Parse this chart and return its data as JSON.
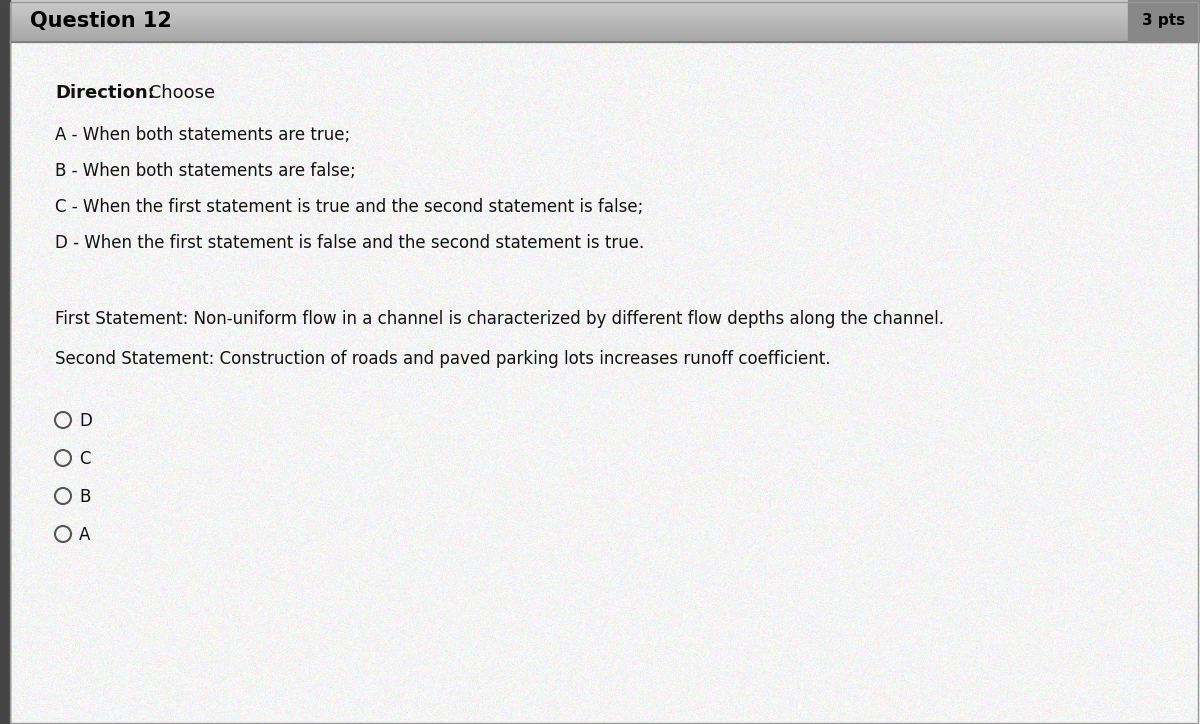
{
  "title": "Question 12",
  "pts": "3 pts",
  "direction_label": "Direction:",
  "direction_text": " Choose",
  "options": [
    "A - When both statements are true;",
    "B - When both statements are false;",
    "C - When the first statement is true and the second statement is false;",
    "D - When the first statement is false and the second statement is true."
  ],
  "first_statement": "First Statement: Non-uniform flow in a channel is characterized by different flow depths along the channel.",
  "second_statement": "Second Statement: Construction of roads and paved parking lots increases runoff coefficient.",
  "answer_choices": [
    "D",
    "C",
    "B",
    "A"
  ],
  "background_color": "#ffffff",
  "header_color": "#b8b8b8",
  "header_text_color": "#000000",
  "pts_background": "#888888",
  "pts_text_color": "#000000",
  "body_text_color": "#111111",
  "left_bar_color": "#444444",
  "radio_color": "#555555",
  "body_bg": "#f5f5f5"
}
